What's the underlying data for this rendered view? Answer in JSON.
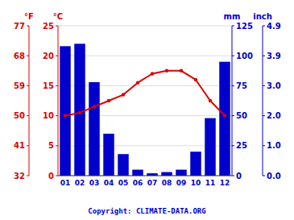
{
  "chart_data": {
    "type": "bar",
    "categories": [
      "01",
      "02",
      "03",
      "04",
      "05",
      "06",
      "07",
      "08",
      "09",
      "10",
      "11",
      "12"
    ],
    "series": [
      {
        "type": "bar",
        "color": "#0000cc",
        "axis": "y2",
        "values": [
          108,
          110,
          78,
          35,
          18,
          5,
          2,
          3,
          5,
          20,
          48,
          95
        ]
      },
      {
        "type": "line",
        "color": "#dd0000",
        "marker": "circle",
        "axis": "y",
        "values": [
          10.0,
          10.5,
          11.5,
          12.5,
          13.5,
          15.5,
          17.0,
          17.5,
          17.5,
          16.0,
          12.5,
          10.0
        ]
      }
    ],
    "y_label": "°C",
    "ylim": [
      0,
      25
    ],
    "yticks": [
      0,
      5,
      10,
      15,
      20,
      25
    ],
    "y2_label": "mm",
    "y2lim": [
      0,
      125
    ],
    "y2ticks": [
      0,
      25,
      50,
      75,
      100,
      125
    ],
    "y3_label": "°F",
    "y3lim": [
      0,
      25
    ],
    "y3ticks": [
      {
        "value": 0,
        "label": "32"
      },
      {
        "value": 5,
        "label": "41"
      },
      {
        "value": 10,
        "label": "50"
      },
      {
        "value": 15,
        "label": "59"
      },
      {
        "value": 20,
        "label": "68"
      },
      {
        "value": 25,
        "label": "77"
      }
    ],
    "y4_label": "inch",
    "y4lim": [
      0,
      125
    ],
    "y4ticks": [
      {
        "value": 0,
        "label": "0.0"
      },
      {
        "value": 25,
        "label": "1.0"
      },
      {
        "value": 50,
        "label": "2.0"
      },
      {
        "value": 75,
        "label": "3.0"
      },
      {
        "value": 100,
        "label": "3.9"
      },
      {
        "value": 125,
        "label": "4.9"
      }
    ],
    "annotations": [
      "Copyright: CLIMATE-DATA.ORG"
    ],
    "grid": true
  }
}
